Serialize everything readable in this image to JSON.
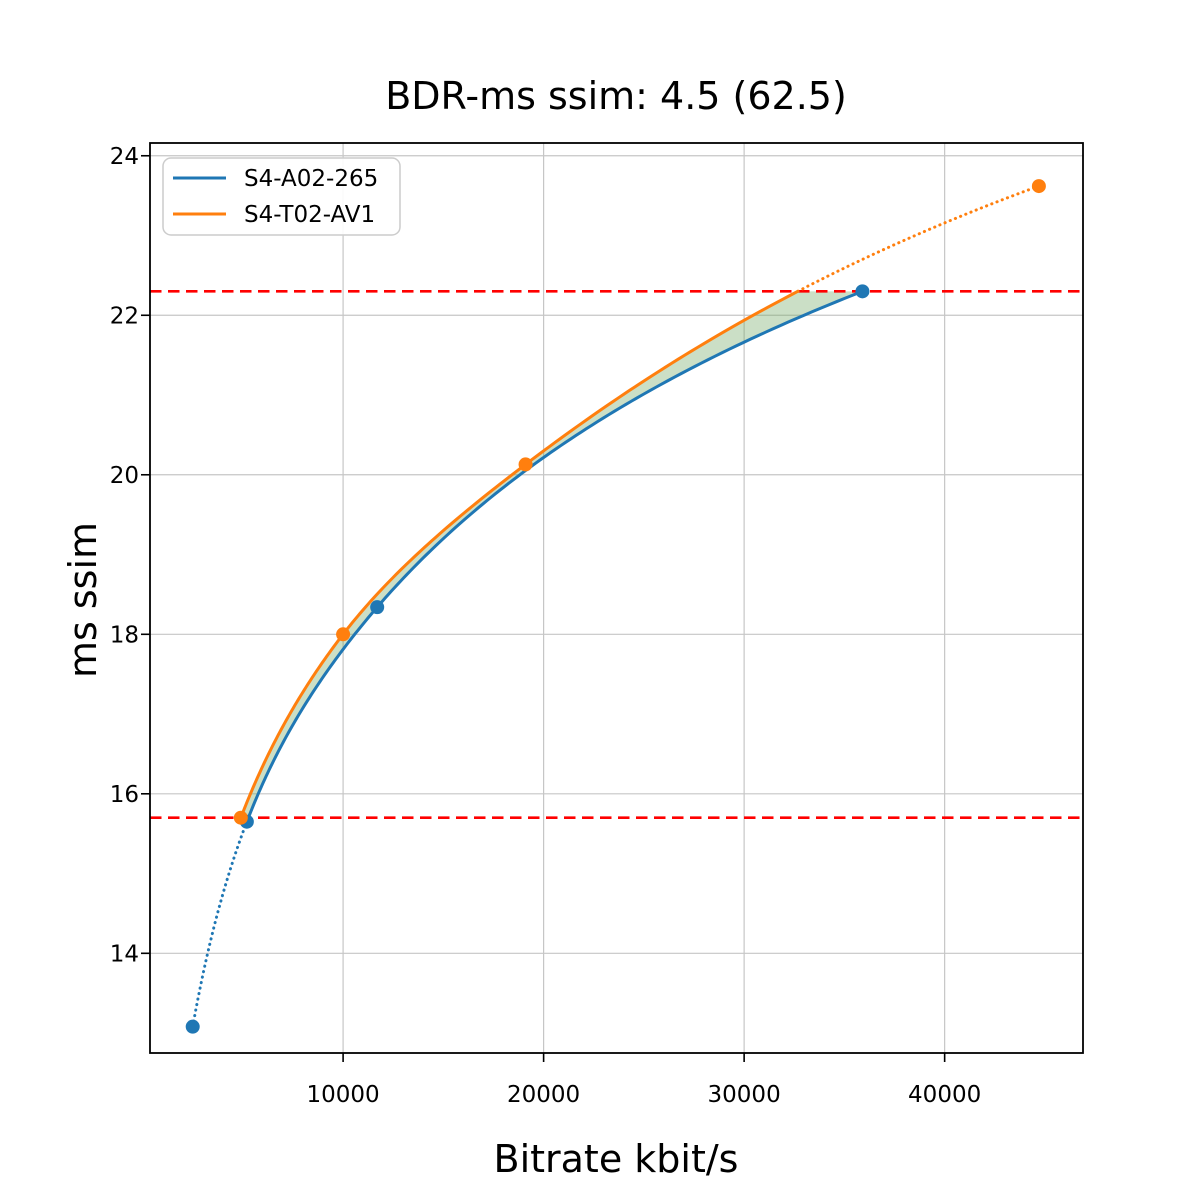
{
  "chart_data": {
    "type": "line",
    "title": "BDR-ms ssim: 4.5 (62.5)",
    "xlabel": "Bitrate kbit/s",
    "ylabel": "ms ssim",
    "xlim": [
      370,
      46900
    ],
    "ylim": [
      12.75,
      24.16
    ],
    "x_ticks": [
      10000,
      20000,
      30000,
      40000
    ],
    "y_ticks": [
      14,
      16,
      18,
      20,
      22,
      24
    ],
    "grid": true,
    "grid_color": "#c6c6c6",
    "legend_position": "upper-left",
    "series": [
      {
        "name": "S4-A02-265",
        "color": "#1f77b4",
        "marker": "circle",
        "points": [
          [
            2500,
            13.08
          ],
          [
            5200,
            15.65
          ],
          [
            11700,
            18.34
          ],
          [
            35900,
            22.3
          ]
        ],
        "dotted_segment": "start"
      },
      {
        "name": "S4-T02-AV1",
        "color": "#ff7f0e",
        "marker": "circle",
        "points": [
          [
            4900,
            15.7
          ],
          [
            10000,
            18.0
          ],
          [
            19100,
            20.13
          ],
          [
            44700,
            23.62
          ]
        ],
        "dotted_segment": "end"
      }
    ],
    "overlap_region": {
      "quality_min": 15.7,
      "quality_max": 22.3,
      "fill_color": "rgba(118,170,105,0.38)"
    },
    "reference_lines": {
      "values": [
        15.7,
        22.3
      ],
      "color": "#ff0000",
      "style": "dashed"
    }
  }
}
